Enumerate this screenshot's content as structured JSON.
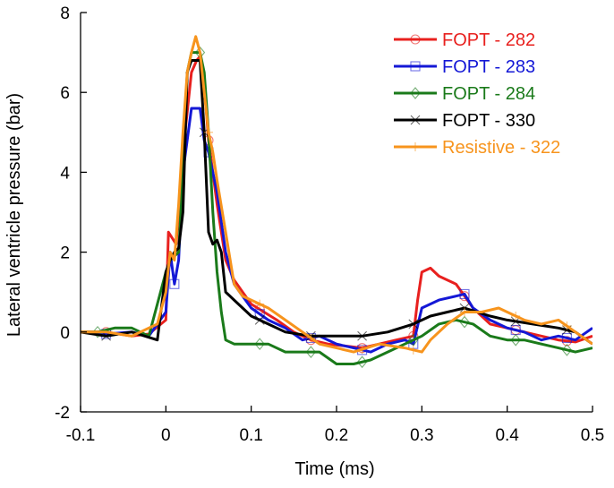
{
  "chart_data": {
    "type": "line",
    "title": "",
    "xlabel": "Time (ms)",
    "ylabel": "Lateral ventricle pressure (bar)",
    "xlim": [
      -0.1,
      0.5
    ],
    "ylim": [
      -2,
      8
    ],
    "xticks": [
      -0.1,
      0,
      0.1,
      0.2,
      0.3,
      0.4,
      0.5
    ],
    "xtick_labels": [
      "-0.1",
      "0",
      "0.1",
      "0.2",
      "0.3",
      "0.4",
      "0.5"
    ],
    "yticks": [
      -2,
      0,
      2,
      4,
      6,
      8
    ],
    "ytick_labels": [
      "-2",
      "0",
      "2",
      "4",
      "6",
      "8"
    ],
    "grid": false,
    "legend_position": "top-right",
    "series": [
      {
        "name": "FOPT - 282",
        "color": "#e8201e",
        "marker": "circle",
        "x": [
          -0.1,
          -0.07,
          -0.04,
          -0.02,
          0,
          0.003,
          0.012,
          0.02,
          0.03,
          0.036,
          0.04,
          0.045,
          0.05,
          0.06,
          0.07,
          0.08,
          0.09,
          0.1,
          0.115,
          0.13,
          0.15,
          0.17,
          0.19,
          0.21,
          0.23,
          0.25,
          0.27,
          0.29,
          0.295,
          0.3,
          0.31,
          0.32,
          0.34,
          0.36,
          0.38,
          0.4,
          0.42,
          0.44,
          0.46,
          0.48,
          0.5
        ],
        "y": [
          0,
          0,
          -0.1,
          -0.05,
          0.3,
          2.5,
          2.2,
          4.5,
          6.5,
          6.8,
          6.9,
          6.2,
          4.8,
          3.2,
          1.8,
          1.3,
          1.0,
          0.7,
          0.5,
          0.3,
          0,
          -0.2,
          -0.3,
          -0.35,
          -0.4,
          -0.3,
          -0.2,
          -0.1,
          0.8,
          1.5,
          1.6,
          1.4,
          1.2,
          0.6,
          0.2,
          0.1,
          0,
          -0.1,
          -0.2,
          -0.25,
          -0.1
        ],
        "marker_x": [
          -0.07,
          0.05,
          0.11,
          0.17,
          0.23,
          0.29,
          0.35,
          0.41,
          0.47
        ]
      },
      {
        "name": "FOPT - 283",
        "color": "#1418d6",
        "marker": "square",
        "x": [
          -0.1,
          -0.07,
          -0.04,
          -0.02,
          0,
          0.005,
          0.01,
          0.015,
          0.02,
          0.03,
          0.04,
          0.045,
          0.05,
          0.06,
          0.07,
          0.08,
          0.09,
          0.1,
          0.12,
          0.14,
          0.16,
          0.18,
          0.2,
          0.22,
          0.24,
          0.26,
          0.28,
          0.29,
          0.3,
          0.32,
          0.34,
          0.35,
          0.36,
          0.38,
          0.4,
          0.42,
          0.44,
          0.46,
          0.48,
          0.5
        ],
        "y": [
          0,
          -0.05,
          0,
          -0.1,
          0.5,
          2.0,
          1.2,
          1.8,
          4.0,
          5.6,
          5.6,
          4.8,
          4.5,
          3.5,
          2.0,
          1.2,
          0.9,
          0.6,
          0.3,
          0.1,
          -0.2,
          -0.1,
          -0.3,
          -0.4,
          -0.5,
          -0.3,
          -0.2,
          -0.3,
          0.6,
          0.8,
          0.9,
          0.95,
          0.6,
          0.3,
          0.1,
          0,
          -0.2,
          -0.1,
          -0.2,
          0.1
        ],
        "marker_x": [
          -0.07,
          0.01,
          0.05,
          0.11,
          0.17,
          0.23,
          0.29,
          0.35,
          0.41,
          0.47
        ]
      },
      {
        "name": "FOPT - 284",
        "color": "#1a7a1a",
        "marker": "diamond",
        "x": [
          -0.1,
          -0.08,
          -0.06,
          -0.04,
          -0.02,
          0,
          0.005,
          0.015,
          0.02,
          0.025,
          0.03,
          0.04,
          0.045,
          0.05,
          0.055,
          0.06,
          0.065,
          0.07,
          0.08,
          0.1,
          0.12,
          0.14,
          0.16,
          0.18,
          0.2,
          0.22,
          0.24,
          0.26,
          0.28,
          0.3,
          0.32,
          0.34,
          0.36,
          0.38,
          0.4,
          0.42,
          0.44,
          0.46,
          0.48,
          0.5
        ],
        "y": [
          0,
          0,
          0.1,
          0.1,
          -0.1,
          1.5,
          1.8,
          2.0,
          4.0,
          6.5,
          7.0,
          7.0,
          6.5,
          5.0,
          3.0,
          1.5,
          0.5,
          -0.2,
          -0.3,
          -0.3,
          -0.3,
          -0.5,
          -0.5,
          -0.5,
          -0.8,
          -0.8,
          -0.7,
          -0.5,
          -0.3,
          -0.1,
          0.2,
          0.3,
          0.2,
          -0.1,
          -0.2,
          -0.2,
          -0.3,
          -0.4,
          -0.5,
          -0.4
        ],
        "marker_x": [
          -0.08,
          0.04,
          0.11,
          0.17,
          0.23,
          0.29,
          0.35,
          0.41,
          0.47
        ]
      },
      {
        "name": "FOPT - 330",
        "color": "#000000",
        "marker": "x",
        "x": [
          -0.1,
          -0.07,
          -0.04,
          -0.01,
          0,
          0.005,
          0.01,
          0.015,
          0.02,
          0.025,
          0.03,
          0.04,
          0.045,
          0.05,
          0.055,
          0.06,
          0.065,
          0.07,
          0.08,
          0.1,
          0.12,
          0.14,
          0.17,
          0.2,
          0.23,
          0.26,
          0.29,
          0.31,
          0.33,
          0.35,
          0.38,
          0.4,
          0.43,
          0.46,
          0.48,
          0.5
        ],
        "y": [
          0,
          -0.1,
          0,
          -0.2,
          1.5,
          1.8,
          2.0,
          2.1,
          3.0,
          6.5,
          6.8,
          6.8,
          5.0,
          2.5,
          2.2,
          2.3,
          2.0,
          1.0,
          0.8,
          0.4,
          0.2,
          0,
          -0.1,
          -0.1,
          -0.1,
          0,
          0.2,
          0.4,
          0.5,
          0.6,
          0.4,
          0.3,
          0.2,
          0.1,
          0,
          -0.3
        ],
        "marker_x": [
          -0.07,
          0.045,
          0.11,
          0.17,
          0.23,
          0.29,
          0.35,
          0.41,
          0.47
        ]
      },
      {
        "name": "Resistive - 322",
        "color": "#f7941d",
        "marker": "plus",
        "x": [
          -0.1,
          -0.07,
          -0.04,
          -0.01,
          0,
          0.005,
          0.01,
          0.015,
          0.02,
          0.025,
          0.03,
          0.035,
          0.04,
          0.045,
          0.05,
          0.055,
          0.06,
          0.07,
          0.08,
          0.09,
          0.1,
          0.12,
          0.14,
          0.16,
          0.18,
          0.2,
          0.22,
          0.25,
          0.28,
          0.3,
          0.31,
          0.33,
          0.35,
          0.37,
          0.39,
          0.4,
          0.42,
          0.44,
          0.46,
          0.48,
          0.5
        ],
        "y": [
          0,
          0,
          -0.1,
          0.2,
          1.0,
          2.0,
          1.8,
          3.2,
          5.0,
          6.5,
          7.0,
          7.4,
          7.0,
          6.0,
          5.0,
          4.5,
          3.8,
          2.5,
          1.2,
          0.9,
          0.8,
          0.6,
          0.3,
          0,
          -0.3,
          -0.4,
          -0.5,
          -0.3,
          -0.4,
          -0.5,
          -0.2,
          0.2,
          0.5,
          0.5,
          0.6,
          0.5,
          0.3,
          0.2,
          0.3,
          0,
          -0.3
        ],
        "marker_x": [
          0.05,
          0.11,
          0.17,
          0.23,
          0.29,
          0.35,
          0.41,
          0.47
        ]
      }
    ]
  }
}
